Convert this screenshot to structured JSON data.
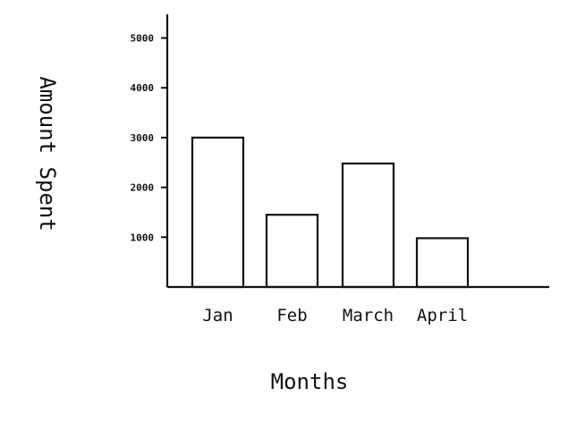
{
  "chart_data": {
    "type": "bar",
    "categories": [
      "Jan",
      "Feb",
      "March",
      "April"
    ],
    "values": [
      3000,
      1450,
      2480,
      980
    ],
    "yticks": [
      1000,
      2000,
      3000,
      4000,
      5000
    ],
    "ytick_labels": [
      "1000",
      "2000",
      "3000",
      "4000",
      "5000"
    ],
    "ylim": [
      0,
      5500
    ],
    "xlabel": "Months",
    "ylabel": "Amount Spent",
    "title": "",
    "grid": false,
    "colors": {
      "bar_fill": "#ffffff",
      "bar_stroke": "#111111"
    }
  }
}
